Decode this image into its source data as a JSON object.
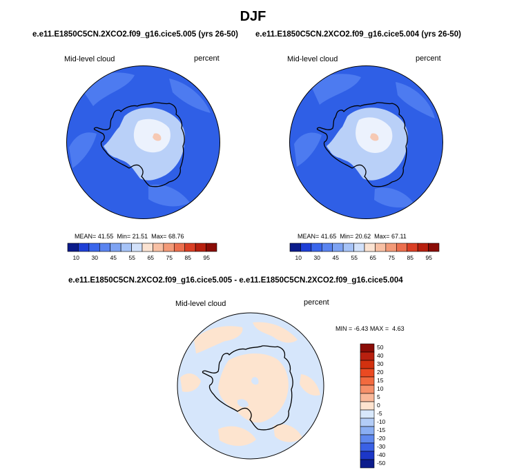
{
  "title": "DJF",
  "panels": [
    {
      "case": "e.e11.E1850C5CN.2XCO2.f09_g16.cice5.005 (yrs 26-50)",
      "variable": "Mid-level cloud",
      "units": "percent",
      "stats": {
        "mean_label": "MEAN=",
        "mean": "41.55",
        "min_label": "Min=",
        "min": "21.51",
        "max_label": "Max=",
        "max": "68.76"
      }
    },
    {
      "case": "e.e11.E1850C5CN.2XCO2.f09_g16.cice5.004 (yrs 26-50)",
      "variable": "Mid-level cloud",
      "units": "percent",
      "stats": {
        "mean_label": "MEAN=",
        "mean": "41.65",
        "min_label": "Min=",
        "min": "20.62",
        "max_label": "Max=",
        "max": "67.11"
      }
    }
  ],
  "colorbar_main": {
    "tick_labels": [
      "10",
      "30",
      "45",
      "55",
      "65",
      "75",
      "85",
      "95"
    ],
    "colors": [
      "#0b1b8a",
      "#1f3fd6",
      "#3a66ec",
      "#5a84f0",
      "#7ea3f3",
      "#a6c3f7",
      "#d2e1fa",
      "#fbe3d2",
      "#f8c0a4",
      "#f39a78",
      "#ec6f4e",
      "#da3f25",
      "#b8200f",
      "#8a0c06"
    ]
  },
  "diff": {
    "case": "e.e11.E1850C5CN.2XCO2.f09_g16.cice5.005 - e.e11.E1850C5CN.2XCO2.f09_g16.cice5.004",
    "variable": "Mid-level cloud",
    "units": "percent",
    "min_label": "MIN =",
    "min": "-6.43",
    "max_label": "MAX =",
    "max": "4.63"
  },
  "colorbar_diff": {
    "tick_labels": [
      "50",
      "40",
      "30",
      "20",
      "15",
      "10",
      "5",
      "0",
      "-5",
      "-10",
      "-15",
      "-20",
      "-30",
      "-40",
      "-50"
    ],
    "colors": [
      "#8a0c06",
      "#b8200f",
      "#d2310f",
      "#ea4a22",
      "#f26a3f",
      "#f6906a",
      "#f9b899",
      "#fde3cf",
      "#d8e8fb",
      "#b3cdf7",
      "#8aaef3",
      "#5f88ee",
      "#3a61e6",
      "#1c37c8",
      "#0c1c8c"
    ]
  },
  "map_colors": {
    "ocean_main": "#2f5fe6",
    "ocean_light": "#4d7bf0",
    "land_pale": "#b9d0f8",
    "land_white": "#ecf2fd",
    "land_peak": "#f6c9b4",
    "diff_blue": "#d6e6fb",
    "diff_peach": "#fde4cf"
  }
}
